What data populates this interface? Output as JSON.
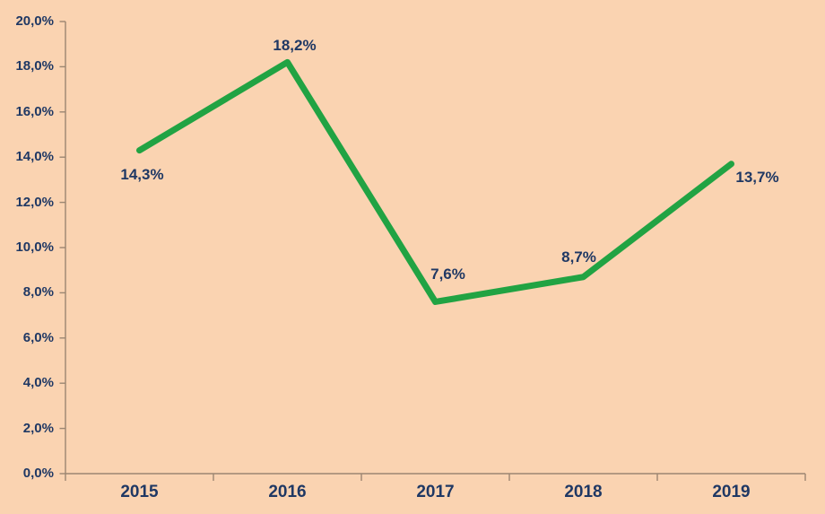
{
  "chart_data": {
    "type": "line",
    "categories": [
      "2015",
      "2016",
      "2017",
      "2018",
      "2019"
    ],
    "values": [
      14.3,
      18.2,
      7.6,
      8.7,
      13.7
    ],
    "point_labels": [
      "14,3%",
      "18,2%",
      "7,6%",
      "8,7%",
      "13,7%"
    ],
    "y_tick_values": [
      0,
      2,
      4,
      6,
      8,
      10,
      12,
      14,
      16,
      18,
      20
    ],
    "y_tick_labels": [
      "0,0%",
      "2,0%",
      "4,0%",
      "6,0%",
      "8,0%",
      "10,0%",
      "12,0%",
      "14,0%",
      "16,0%",
      "18,0%",
      "20,0%"
    ],
    "ylim": [
      0,
      20
    ],
    "y_step": 2,
    "title": "",
    "xlabel": "",
    "ylabel": "",
    "grid": false,
    "legend": null,
    "decimal_separator": ",",
    "colors": {
      "background": "#fad3b1",
      "line": "#21a343",
      "text": "#1f3864",
      "axis": "#9b8672"
    }
  }
}
